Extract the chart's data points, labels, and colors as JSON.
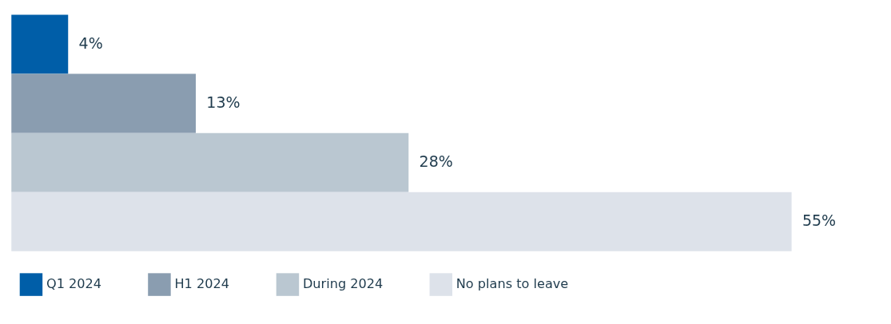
{
  "chart_data": {
    "type": "bar",
    "orientation": "horizontal",
    "stacked": true,
    "categories": [
      null,
      null,
      null,
      null
    ],
    "legend": "bottom",
    "series": [
      {
        "name": "Q1 2024",
        "color": "#005ea8",
        "values": [
          4,
          null,
          null,
          null
        ],
        "value_labels": [
          "4%",
          null,
          null,
          null
        ]
      },
      {
        "name": "H1 2024",
        "color": "#8a9db0",
        "values": [
          null,
          13,
          null,
          null
        ],
        "value_labels": [
          null,
          "13%",
          null,
          null
        ]
      },
      {
        "name": "During 2024",
        "color": "#bac7d1",
        "values": [
          null,
          null,
          28,
          null
        ],
        "value_labels": [
          null,
          null,
          "28%",
          null
        ]
      },
      {
        "name": "No plans to leave",
        "color": "#dde2ea",
        "values": [
          null,
          null,
          null,
          55
        ],
        "value_labels": [
          null,
          null,
          null,
          "55%"
        ]
      }
    ]
  }
}
